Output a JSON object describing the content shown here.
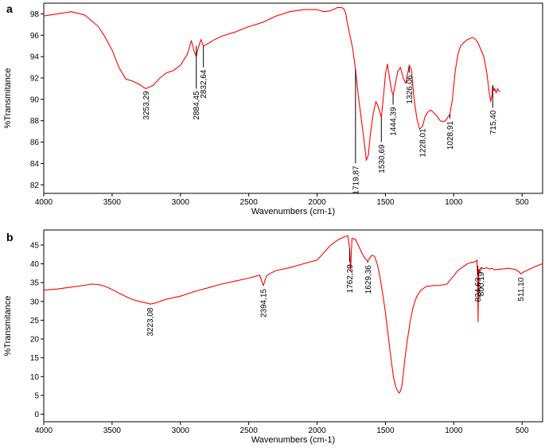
{
  "chart_data": [
    {
      "type": "line",
      "panel_label": "a",
      "xlabel": "Wavenumbers (cm-1)",
      "ylabel": "%Transmitance",
      "xlim": [
        4000,
        350
      ],
      "ylim": [
        81.2,
        99
      ],
      "x_ticks": [
        "4000",
        "3500",
        "3000",
        "2500",
        "2000",
        "1500",
        "1000",
        "500"
      ],
      "y_ticks": [
        "82",
        "84",
        "86",
        "88",
        "90",
        "92",
        "94",
        "96",
        "98"
      ],
      "line_color": "#ff0000",
      "grid": false,
      "series": [
        {
          "x": [
            4000,
            3900,
            3800,
            3700,
            3600,
            3550,
            3500,
            3450,
            3400,
            3350,
            3300,
            3253,
            3200,
            3150,
            3100,
            3050,
            3000,
            2950,
            2920,
            2900,
            2884,
            2870,
            2850,
            2832,
            2800,
            2750,
            2700,
            2600,
            2500,
            2400,
            2300,
            2200,
            2100,
            2000,
            1950,
            1900,
            1850,
            1820,
            1800,
            1790,
            1780,
            1760,
            1740,
            1719,
            1700,
            1680,
            1660,
            1640,
            1625,
            1610,
            1590,
            1570,
            1555,
            1530,
            1515,
            1500,
            1485,
            1470,
            1455,
            1444,
            1430,
            1410,
            1390,
            1370,
            1350,
            1326,
            1310,
            1290,
            1270,
            1250,
            1228,
            1210,
            1190,
            1170,
            1150,
            1120,
            1100,
            1080,
            1060,
            1045,
            1028,
            1010,
            990,
            970,
            950,
            920,
            900,
            880,
            860,
            840,
            820,
            800,
            780,
            760,
            740,
            730,
            720,
            715,
            705,
            700,
            690,
            680,
            670,
            660
          ],
          "y": [
            97.8,
            98.0,
            98.2,
            97.9,
            96.8,
            95.8,
            94.6,
            93.0,
            91.9,
            91.7,
            91.4,
            91.0,
            91.3,
            92.0,
            92.5,
            92.7,
            93.2,
            94.2,
            95.5,
            94.5,
            94.0,
            94.8,
            95.6,
            95.0,
            95.2,
            95.6,
            95.9,
            96.3,
            96.8,
            97.2,
            97.8,
            98.2,
            98.4,
            98.4,
            98.2,
            98.3,
            98.6,
            98.6,
            98.4,
            98.0,
            97.2,
            96.0,
            94.8,
            92.8,
            90.5,
            88.5,
            86.5,
            84.3,
            84.8,
            86.8,
            88.6,
            89.8,
            89.4,
            88.3,
            90.2,
            92.4,
            93.3,
            92.0,
            90.8,
            90.4,
            91.3,
            92.6,
            93.0,
            92.0,
            91.5,
            93.2,
            92.8,
            90.0,
            88.2,
            87.2,
            87.5,
            88.4,
            88.8,
            89.0,
            88.8,
            88.4,
            88.0,
            87.9,
            88.0,
            88.3,
            88.6,
            90.0,
            92.6,
            94.2,
            95.0,
            95.4,
            95.6,
            95.7,
            95.8,
            95.6,
            95.2,
            94.6,
            94.0,
            92.6,
            90.6,
            89.8,
            90.4,
            91.3,
            90.8,
            91.0,
            90.6,
            91.0,
            90.8,
            90.7
          ]
        }
      ],
      "annotations": [
        {
          "text": "3253,29",
          "x": 3253,
          "y": 91.0,
          "tip": 91.0
        },
        {
          "text": "2884,45",
          "x": 2884,
          "y": 95.0,
          "tip": 91.0
        },
        {
          "text": "2832,64",
          "x": 2832,
          "y": 95.0,
          "tip": 93.0
        },
        {
          "text": "1719,87",
          "x": 1719,
          "y": 92.8,
          "tip": 84.0
        },
        {
          "text": "1530,69",
          "x": 1530,
          "y": 88.3,
          "tip": 86.0
        },
        {
          "text": "1444,39",
          "x": 1444,
          "y": 90.4,
          "tip": 89.5
        },
        {
          "text": "1326,06",
          "x": 1326,
          "y": 93.0,
          "tip": 92.5
        },
        {
          "text": "1228,01",
          "x": 1228,
          "y": 87.5,
          "tip": 87.5
        },
        {
          "text": "1028,91",
          "x": 1028,
          "y": 88.6,
          "tip": 88.2
        },
        {
          "text": "715,40",
          "x": 715,
          "y": 91.3,
          "tip": 89.2
        }
      ]
    },
    {
      "type": "line",
      "panel_label": "b",
      "xlabel": "Wavenumbers (cm-1)",
      "ylabel": "%Transmitance",
      "xlim": [
        4000,
        350
      ],
      "ylim": [
        -2,
        49
      ],
      "x_ticks": [
        "4000",
        "3500",
        "3000",
        "2500",
        "2000",
        "1500",
        "1000",
        "500"
      ],
      "y_ticks": [
        "0",
        "5",
        "10",
        "15",
        "20",
        "25",
        "30",
        "35",
        "40",
        "45"
      ],
      "line_color": "#ff0000",
      "grid": false,
      "series": [
        {
          "x": [
            4000,
            3900,
            3800,
            3700,
            3650,
            3600,
            3550,
            3500,
            3450,
            3400,
            3350,
            3300,
            3250,
            3223,
            3200,
            3150,
            3100,
            3000,
            2900,
            2800,
            2700,
            2600,
            2500,
            2420,
            2394,
            2370,
            2340,
            2300,
            2200,
            2100,
            2000,
            1950,
            1900,
            1850,
            1800,
            1775,
            1762,
            1755,
            1745,
            1720,
            1700,
            1680,
            1660,
            1640,
            1629,
            1615,
            1600,
            1580,
            1560,
            1540,
            1520,
            1500,
            1480,
            1460,
            1440,
            1420,
            1400,
            1390,
            1380,
            1370,
            1360,
            1340,
            1320,
            1300,
            1280,
            1260,
            1240,
            1200,
            1150,
            1100,
            1050,
            1020,
            1000,
            980,
            950,
            920,
            900,
            880,
            860,
            840,
            830,
            826,
            822,
            818,
            814,
            810,
            806,
            800,
            780,
            760,
            740,
            720,
            700,
            650,
            600,
            550,
            520,
            511,
            500,
            480,
            450,
            420,
            400,
            370,
            350
          ],
          "y": [
            33.0,
            33.3,
            33.8,
            34.3,
            34.6,
            34.5,
            34.0,
            33.2,
            32.2,
            31.3,
            30.5,
            30.0,
            29.6,
            29.3,
            29.4,
            30.0,
            30.6,
            31.4,
            32.6,
            33.6,
            34.6,
            35.4,
            36.2,
            37.0,
            34.2,
            36.8,
            37.5,
            38.2,
            39.0,
            40.0,
            41.0,
            43.0,
            45.0,
            46.3,
            47.2,
            47.5,
            44.0,
            38.2,
            46.8,
            46.5,
            45.0,
            43.5,
            42.0,
            41.0,
            40.8,
            41.5,
            42.3,
            42.0,
            40.0,
            36.5,
            32.0,
            27.0,
            21.0,
            15.0,
            9.5,
            6.8,
            5.6,
            6.2,
            7.5,
            10.5,
            14.0,
            19.5,
            24.5,
            28.0,
            30.5,
            32.0,
            33.0,
            34.0,
            34.2,
            34.3,
            34.6,
            36.0,
            36.8,
            37.8,
            38.8,
            39.5,
            40.0,
            40.3,
            40.4,
            40.6,
            41.0,
            37.0,
            24.6,
            38.5,
            38.5,
            37.5,
            38.2,
            39.0,
            38.7,
            39.0,
            38.6,
            38.8,
            38.4,
            38.6,
            38.8,
            38.5,
            37.8,
            37.3,
            37.6,
            38.0,
            38.5,
            39.0,
            39.3,
            39.8,
            40.0
          ]
        }
      ],
      "annotations": [
        {
          "text": "3223,08",
          "x": 3223,
          "y": 29.3,
          "tip": 29.0
        },
        {
          "text": "2394,15",
          "x": 2394,
          "y": 34.2,
          "tip": 34.0
        },
        {
          "text": "1762,29",
          "x": 1762,
          "y": 44.0,
          "tip": 40.5
        },
        {
          "text": "1629,36",
          "x": 1629,
          "y": 40.8,
          "tip": 40.3
        },
        {
          "text": "824,63",
          "x": 824,
          "y": 37.0,
          "tip": 39.5
        },
        {
          "text": "800,19",
          "x": 800,
          "y": 39.0,
          "tip": 38.5
        },
        {
          "text": "511,10",
          "x": 511,
          "y": 37.3,
          "tip": 37.0
        }
      ]
    }
  ]
}
